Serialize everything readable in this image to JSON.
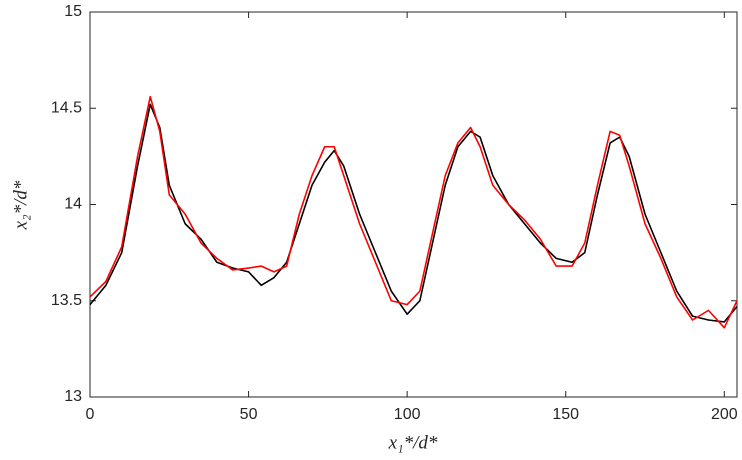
{
  "chart_data": {
    "type": "line",
    "x_label": "x₁*/d*",
    "y_label": "x₂*/d*",
    "x": [
      0,
      5,
      10,
      15,
      19,
      22,
      25,
      30,
      35,
      40,
      45,
      50,
      54,
      58,
      62,
      66,
      70,
      74,
      77,
      80,
      85,
      90,
      95,
      100,
      104,
      108,
      112,
      116,
      120,
      123,
      127,
      132,
      137,
      142,
      147,
      152,
      156,
      160,
      164,
      167,
      170,
      175,
      180,
      185,
      190,
      195,
      200,
      204
    ],
    "series": [
      {
        "color": "#000000",
        "values": [
          13.48,
          13.58,
          13.75,
          14.2,
          14.52,
          14.4,
          14.1,
          13.9,
          13.82,
          13.7,
          13.67,
          13.65,
          13.58,
          13.62,
          13.7,
          13.9,
          14.1,
          14.22,
          14.28,
          14.2,
          13.95,
          13.75,
          13.55,
          13.43,
          13.5,
          13.8,
          14.1,
          14.3,
          14.38,
          14.35,
          14.15,
          14.0,
          13.9,
          13.8,
          13.72,
          13.7,
          13.75,
          14.05,
          14.32,
          14.35,
          14.25,
          13.95,
          13.75,
          13.55,
          13.42,
          13.4,
          13.39,
          13.47
        ]
      },
      {
        "color": "#ff0000",
        "values": [
          13.52,
          13.6,
          13.78,
          14.25,
          14.56,
          14.38,
          14.05,
          13.95,
          13.8,
          13.72,
          13.66,
          13.67,
          13.68,
          13.65,
          13.68,
          13.95,
          14.15,
          14.3,
          14.3,
          14.15,
          13.9,
          13.7,
          13.5,
          13.48,
          13.55,
          13.85,
          14.15,
          14.32,
          14.4,
          14.3,
          14.1,
          14.0,
          13.92,
          13.82,
          13.68,
          13.68,
          13.8,
          14.1,
          14.38,
          14.36,
          14.2,
          13.9,
          13.72,
          13.52,
          13.4,
          13.45,
          13.36,
          13.5
        ]
      }
    ],
    "xlim": [
      0,
      204
    ],
    "xticks": [
      0,
      50,
      100,
      150,
      200
    ],
    "ylim": [
      13,
      15
    ],
    "yticks": [
      13,
      13.5,
      14,
      14.5,
      15
    ]
  }
}
